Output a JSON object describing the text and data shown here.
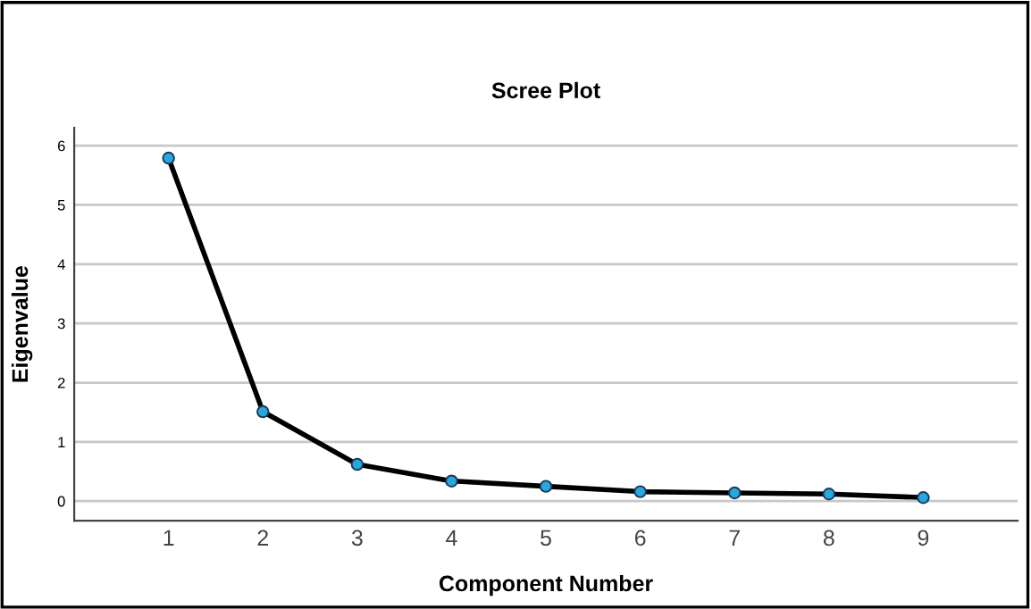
{
  "chart_data": {
    "type": "line",
    "title": "Scree Plot",
    "xlabel": "Component Number",
    "ylabel": "Eigenvalue",
    "categories": [
      "1",
      "2",
      "3",
      "4",
      "5",
      "6",
      "7",
      "8",
      "9"
    ],
    "series": [
      {
        "color": "#000000",
        "values": [
          5.79,
          1.51,
          0.62,
          0.34,
          0.25,
          0.16,
          0.14,
          0.12,
          0.06
        ]
      }
    ],
    "ylim": [
      -0.33,
      6.3
    ],
    "yticks": [
      0,
      1,
      2,
      3,
      4,
      5,
      6
    ],
    "grid": "y",
    "marker": "circle",
    "line_style": "solid"
  }
}
